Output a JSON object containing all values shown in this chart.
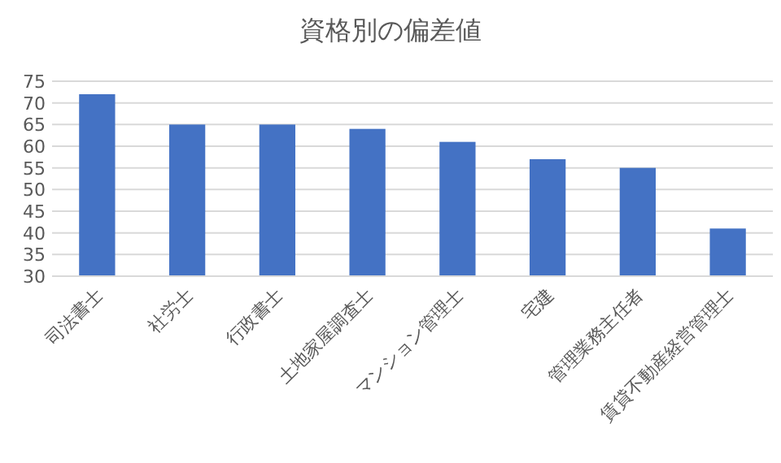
{
  "chart_data": {
    "type": "bar",
    "title": "資格別の偏差値",
    "categories": [
      "司法書士",
      "社労士",
      "行政書士",
      "土地家屋調査士",
      "マンション管理士",
      "宅建",
      "管理業務主任者",
      "賃貸不動産経営管理士"
    ],
    "values": [
      72,
      65,
      65,
      64,
      61,
      57,
      55,
      41
    ],
    "color": "#4472c4",
    "ylim": [
      30,
      75
    ],
    "yticks": [
      30,
      35,
      40,
      45,
      50,
      55,
      60,
      65,
      70,
      75
    ],
    "grid": "y"
  }
}
